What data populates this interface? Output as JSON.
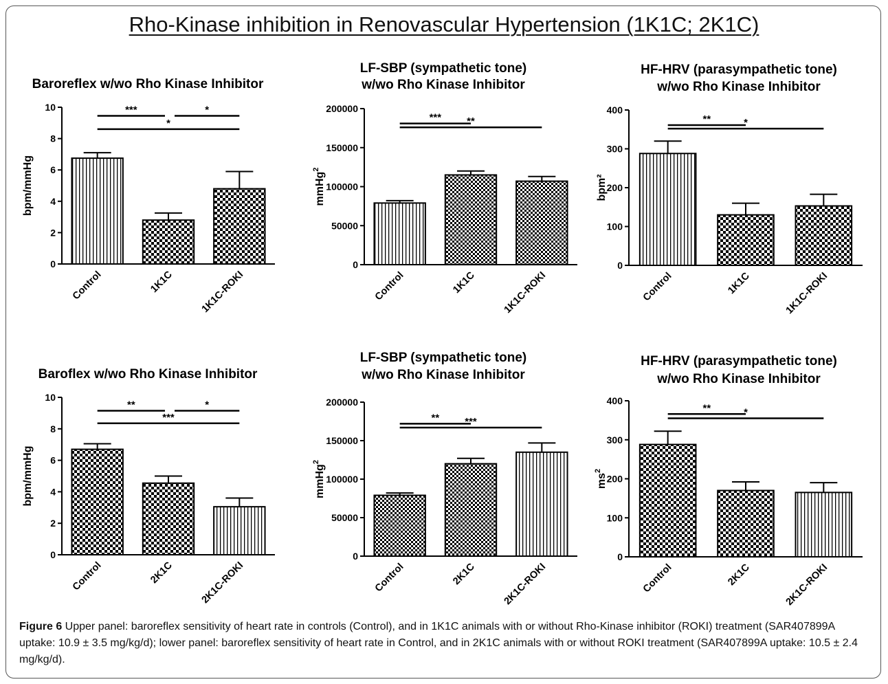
{
  "page_title": "Rho-Kinase inhibition in Renovascular Hypertension (1K1C; 2K1C)",
  "caption": {
    "label": "Figure 6",
    "text": " Upper panel: baroreflex sensitivity of heart rate in controls (Control), and in 1K1C animals with or without Rho-Kinase inhibitor (ROKI) treatment (SAR407899A uptake: 10.9 ± 3.5 mg/kg/d); lower panel: baroreflex sensitivity of heart rate in Control, and in 2K1C animals with or without ROKI treatment (SAR407899A uptake: 10.5 ± 2.4 mg/kg/d)."
  },
  "colors": {
    "ink": "#000000",
    "fill": "#ffffff"
  },
  "chart_data": [
    {
      "type": "bar",
      "title": [
        "Baroreflex w/wo Rho Kinase Inhibitor"
      ],
      "ylabel": "bpm/mmHg",
      "ylim": [
        0,
        10
      ],
      "yticks": [
        "0",
        "2",
        "4",
        "6",
        "8",
        "10"
      ],
      "categories": [
        "Control",
        "1K1C",
        "1K1C-ROKI"
      ],
      "values": [
        6.75,
        2.8,
        4.8
      ],
      "errors": [
        0.35,
        0.45,
        1.1
      ],
      "patterns": [
        "vertical",
        "checker",
        "checker"
      ],
      "significance": [
        {
          "from": 0,
          "to": 1,
          "label": "***",
          "level": 9.45
        },
        {
          "from": 1,
          "to": 2,
          "label": "*",
          "level": 9.45
        },
        {
          "from": 0,
          "to": 2,
          "label": "*",
          "level": 8.6
        }
      ]
    },
    {
      "type": "bar",
      "title": [
        "LF-SBP (sympathetic tone)",
        "w/wo Rho Kinase Inhibitor"
      ],
      "ylabel": "mmHg",
      "ylabel_sup": "2",
      "ylim": [
        0,
        200000
      ],
      "yticks": [
        "0",
        "50000",
        "100000",
        "150000",
        "200000"
      ],
      "categories": [
        "Control",
        "1K1C",
        "1K1C-ROKI"
      ],
      "values": [
        79000,
        115000,
        107000
      ],
      "errors": [
        3000,
        5000,
        6000
      ],
      "patterns": [
        "vertical",
        "checker-fine",
        "checker-fine"
      ],
      "significance": [
        {
          "from": 0,
          "to": 1,
          "label": "***",
          "level": 181000
        },
        {
          "from": 0,
          "to": 2,
          "label": "**",
          "level": 176000
        }
      ]
    },
    {
      "type": "bar",
      "title": [
        "HF-HRV (parasympathetic tone)",
        "w/wo Rho Kinase Inhibitor"
      ],
      "ylabel": "bpm²",
      "ylim": [
        0,
        400
      ],
      "yticks": [
        "0",
        "100",
        "200",
        "300",
        "400"
      ],
      "categories": [
        "Control",
        "1K1C",
        "1K1C-ROKI"
      ],
      "values": [
        288,
        130,
        153
      ],
      "errors": [
        32,
        30,
        30
      ],
      "patterns": [
        "vertical",
        "checker",
        "checker"
      ],
      "significance": [
        {
          "from": 0,
          "to": 1,
          "label": "**",
          "level": 361
        },
        {
          "from": 0,
          "to": 2,
          "label": "*",
          "level": 352
        }
      ]
    },
    {
      "type": "bar",
      "title": [
        "Baroflex w/wo Rho  Kinase Inhibitor"
      ],
      "ylabel": "bpm/mmHg",
      "ylim": [
        0,
        10
      ],
      "yticks": [
        "0",
        "2",
        "4",
        "6",
        "8",
        "10"
      ],
      "categories": [
        "Control",
        "2K1C",
        "2K1C-ROKI"
      ],
      "values": [
        6.7,
        4.55,
        3.05
      ],
      "errors": [
        0.35,
        0.45,
        0.55
      ],
      "patterns": [
        "checker",
        "checker",
        "vertical"
      ],
      "significance": [
        {
          "from": 0,
          "to": 1,
          "label": "**",
          "level": 9.15
        },
        {
          "from": 1,
          "to": 2,
          "label": "*",
          "level": 9.15
        },
        {
          "from": 0,
          "to": 2,
          "label": "***",
          "level": 8.35
        }
      ]
    },
    {
      "type": "bar",
      "title": [
        "LF-SBP  (sympathetic tone)",
        "w/wo Rho Kinase Inhibitor"
      ],
      "ylabel": "mmHg",
      "ylabel_sup": "2",
      "ylim": [
        0,
        200000
      ],
      "yticks": [
        "0",
        "50000",
        "100000",
        "150000",
        "200000"
      ],
      "categories": [
        "Control",
        "2K1C",
        "2K1C-ROKI"
      ],
      "values": [
        79000,
        120000,
        135000
      ],
      "errors": [
        3000,
        7000,
        12000
      ],
      "patterns": [
        "checker-fine",
        "checker-fine",
        "vertical"
      ],
      "significance": [
        {
          "from": 0,
          "to": 1,
          "label": "**",
          "level": 172000
        },
        {
          "from": 0,
          "to": 2,
          "label": "***",
          "level": 167000
        }
      ]
    },
    {
      "type": "bar",
      "title": [
        "HF-HRV (parasympathetic tone)",
        "w/wo Rho Kinase Inhibitor"
      ],
      "ylabel": "ms",
      "ylabel_sup": "2",
      "ylim": [
        0,
        400
      ],
      "yticks": [
        "0",
        "100",
        "200",
        "300",
        "400"
      ],
      "categories": [
        "Control",
        "2K1C",
        "2K1C-ROKI"
      ],
      "values": [
        288,
        170,
        165
      ],
      "errors": [
        34,
        22,
        25
      ],
      "patterns": [
        "checker",
        "checker",
        "vertical"
      ],
      "significance": [
        {
          "from": 0,
          "to": 1,
          "label": "**",
          "level": 366
        },
        {
          "from": 0,
          "to": 2,
          "label": "*",
          "level": 355
        }
      ]
    }
  ]
}
